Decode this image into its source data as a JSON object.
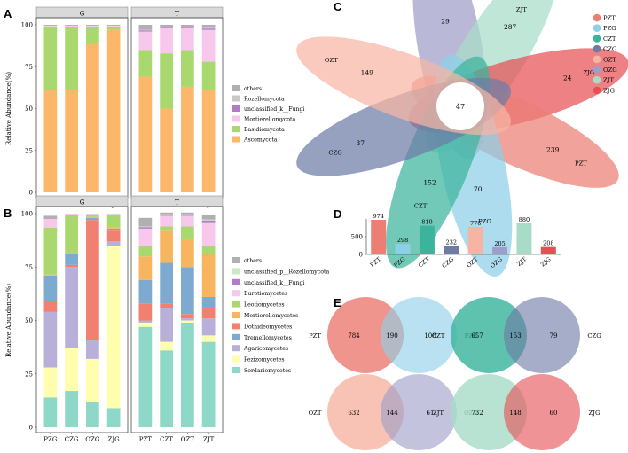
{
  "panels": {
    "a": "A",
    "b": "B",
    "c": "C",
    "d": "D",
    "e": "E"
  },
  "colors": {
    "ascomycota": "#FCB76A",
    "basidiomycota": "#A8D86E",
    "mortierellomycota": "#F8C8EC",
    "unclassified_fungi": "#B07CC8",
    "rozellomycota": "#C8C8C8",
    "others": "#B0B0B0",
    "strip": "#D9D9D9",
    "venn": {
      "PZT": "#EC7E74",
      "PZG": "#8ECFE8",
      "CZT": "#3CB49C",
      "CZG": "#6E7BA6",
      "OZT": "#F6B5A3",
      "OZG": "#9E9EC8",
      "ZJT": "#A8DCC8",
      "ZJG": "#E65055"
    }
  },
  "chart_data": [
    {
      "id": "A",
      "type": "bar",
      "stacked": true,
      "facets": [
        "G",
        "T"
      ],
      "categories_by_facet": {
        "G": [
          "PZG",
          "CZG",
          "OZG",
          "ZJG"
        ],
        "T": [
          "PZT",
          "CZT",
          "OZT",
          "ZJT"
        ]
      },
      "ylabel": "Relative Abundance(%)",
      "ylim": [
        0,
        100
      ],
      "yticks": [
        0,
        25,
        50,
        75,
        100
      ],
      "series": [
        {
          "name": "Ascomycota",
          "color": "#FCB76A",
          "values": [
            61,
            61,
            89,
            97,
            69,
            50,
            63,
            61
          ]
        },
        {
          "name": "Basidiomycota",
          "color": "#A8D86E",
          "values": [
            38,
            38,
            10,
            2,
            16,
            33,
            22,
            17
          ]
        },
        {
          "name": "Mortierellomycota",
          "color": "#F8C8EC",
          "values": [
            0.5,
            0.5,
            0.5,
            0.5,
            11,
            15,
            13,
            19
          ]
        },
        {
          "name": "unclassified_k__Fungi",
          "color": "#B07CC8",
          "values": [
            0,
            0,
            0,
            0,
            0.7,
            0.4,
            0.4,
            0.8
          ]
        },
        {
          "name": "Rozellomycota",
          "color": "#C8C8C8",
          "values": [
            0,
            0,
            0,
            0,
            0.3,
            0.3,
            0.3,
            0.4
          ]
        },
        {
          "name": "others",
          "color": "#B0B0B0",
          "values": [
            0.5,
            0.5,
            0.5,
            0.5,
            3,
            1.3,
            1.3,
            1.8
          ]
        }
      ],
      "legend": [
        "others",
        "Rozellomycota",
        "unclassified_k__Fungi",
        "Mortierellomycota",
        "Basidiomycota",
        "Ascomycota"
      ]
    },
    {
      "id": "B",
      "type": "bar",
      "stacked": true,
      "facets": [
        "G",
        "T"
      ],
      "categories_by_facet": {
        "G": [
          "PZG",
          "CZG",
          "OZG",
          "ZJG"
        ],
        "T": [
          "PZT",
          "CZT",
          "OZT",
          "ZJT"
        ]
      },
      "ylabel": "Relative Abundance(%)",
      "ylim": [
        0,
        100
      ],
      "yticks": [
        0,
        25,
        50,
        75,
        100
      ],
      "series": [
        {
          "name": "Sordariomycetes",
          "color": "#8ED8C8",
          "values": [
            14,
            17,
            12,
            9,
            47,
            36,
            49,
            40
          ]
        },
        {
          "name": "Pezizomycetes",
          "color": "#FEFEAE",
          "values": [
            14,
            20,
            20,
            76,
            2,
            4,
            1,
            3
          ]
        },
        {
          "name": "Agaricomycetes",
          "color": "#B8B0D8",
          "values": [
            26,
            38,
            9,
            2,
            1,
            16,
            1,
            8
          ]
        },
        {
          "name": "Dothideomycetes",
          "color": "#F28070",
          "values": [
            5,
            1,
            56,
            5,
            8,
            2,
            2,
            5
          ]
        },
        {
          "name": "Tremellomycetes",
          "color": "#7EAAD0",
          "values": [
            12,
            5,
            1,
            1,
            11,
            19,
            22,
            5
          ]
        },
        {
          "name": "Mortierellomycetes",
          "color": "#F8B560",
          "values": [
            0.5,
            0.5,
            0.5,
            0.5,
            11,
            15,
            13,
            20
          ]
        },
        {
          "name": "Leotiomycetes",
          "color": "#A8D86E",
          "values": [
            22,
            18,
            1,
            6,
            5,
            2,
            6,
            4
          ]
        },
        {
          "name": "Eurotiomycetes",
          "color": "#F8C8EC",
          "values": [
            4,
            0.5,
            0.5,
            0.5,
            8,
            5,
            5,
            11
          ]
        },
        {
          "name": "unclassified_k__Fungi",
          "color": "#B07CC8",
          "values": [
            0,
            0,
            0,
            0,
            0.7,
            0.4,
            0.4,
            0.8
          ]
        },
        {
          "name": "unclassified_p__Rozellomycota",
          "color": "#CCE8C0",
          "values": [
            0,
            0,
            0,
            0,
            0.3,
            0.3,
            0.3,
            0.4
          ]
        },
        {
          "name": "others",
          "color": "#B0B0B0",
          "values": [
            1.5,
            0,
            0,
            0,
            4,
            0.8,
            0.8,
            2.4
          ]
        }
      ],
      "legend": [
        "others",
        "unclassified_p__Rozellomycota",
        "unclassified_k__Fungi",
        "Eurotiomycetes",
        "Leotiomycetes",
        "Mortierellomycetes",
        "Dothideomycetes",
        "Tremellomycetes",
        "Agaricomycetes",
        "Pezizomycetes",
        "Sordariomycetes"
      ]
    },
    {
      "id": "C",
      "type": "venn-flower",
      "center": 47,
      "petals": [
        {
          "name": "OZG",
          "unique": 29,
          "color": "#9E9EC8"
        },
        {
          "name": "ZJT",
          "unique": 287,
          "color": "#A8DCC8"
        },
        {
          "name": "ZJG",
          "unique": 24,
          "color": "#E65055"
        },
        {
          "name": "PZT",
          "unique": 239,
          "color": "#EC7E74"
        },
        {
          "name": "PZG",
          "unique": 70,
          "color": "#8ECFE8"
        },
        {
          "name": "CZT",
          "unique": 152,
          "color": "#3CB49C"
        },
        {
          "name": "CZG",
          "unique": 37,
          "color": "#6E7BA6"
        },
        {
          "name": "OZT",
          "unique": 149,
          "color": "#F6B5A3"
        }
      ],
      "legend": [
        "PZT",
        "PZG",
        "CZT",
        "CZG",
        "OZT",
        "OZG",
        "ZJT",
        "ZJG"
      ]
    },
    {
      "id": "D",
      "type": "bar",
      "categories": [
        "PZT",
        "PZG",
        "CZT",
        "CZG",
        "OZT",
        "OZG",
        "ZJT",
        "ZJG"
      ],
      "values": [
        974,
        298,
        810,
        232,
        776,
        205,
        880,
        208
      ],
      "colors": [
        "#EC7E74",
        "#8ECFE8",
        "#3CB49C",
        "#6E7BA6",
        "#F6B5A3",
        "#9E9EC8",
        "#A8DCC8",
        "#E65055"
      ],
      "ylim": [
        0,
        1000
      ],
      "yticks": [
        0,
        500
      ]
    },
    {
      "id": "E",
      "type": "venn",
      "pairs": [
        {
          "left": "PZT",
          "right": "PZG",
          "left_only": 784,
          "shared": 190,
          "right_only": 108,
          "left_color": "#EC7E74",
          "right_color": "#8ECFE8"
        },
        {
          "left": "CZT",
          "right": "CZG",
          "left_only": 657,
          "shared": 153,
          "right_only": 79,
          "left_color": "#3CB49C",
          "right_color": "#6E7BA6"
        },
        {
          "left": "OZT",
          "right": "OZG",
          "left_only": 632,
          "shared": 144,
          "right_only": 61,
          "left_color": "#F6B5A3",
          "right_color": "#9E9EC8"
        },
        {
          "left": "ZJT",
          "right": "ZJG",
          "left_only": 732,
          "shared": 148,
          "right_only": 60,
          "left_color": "#A8DCC8",
          "right_color": "#E65055"
        }
      ]
    }
  ]
}
